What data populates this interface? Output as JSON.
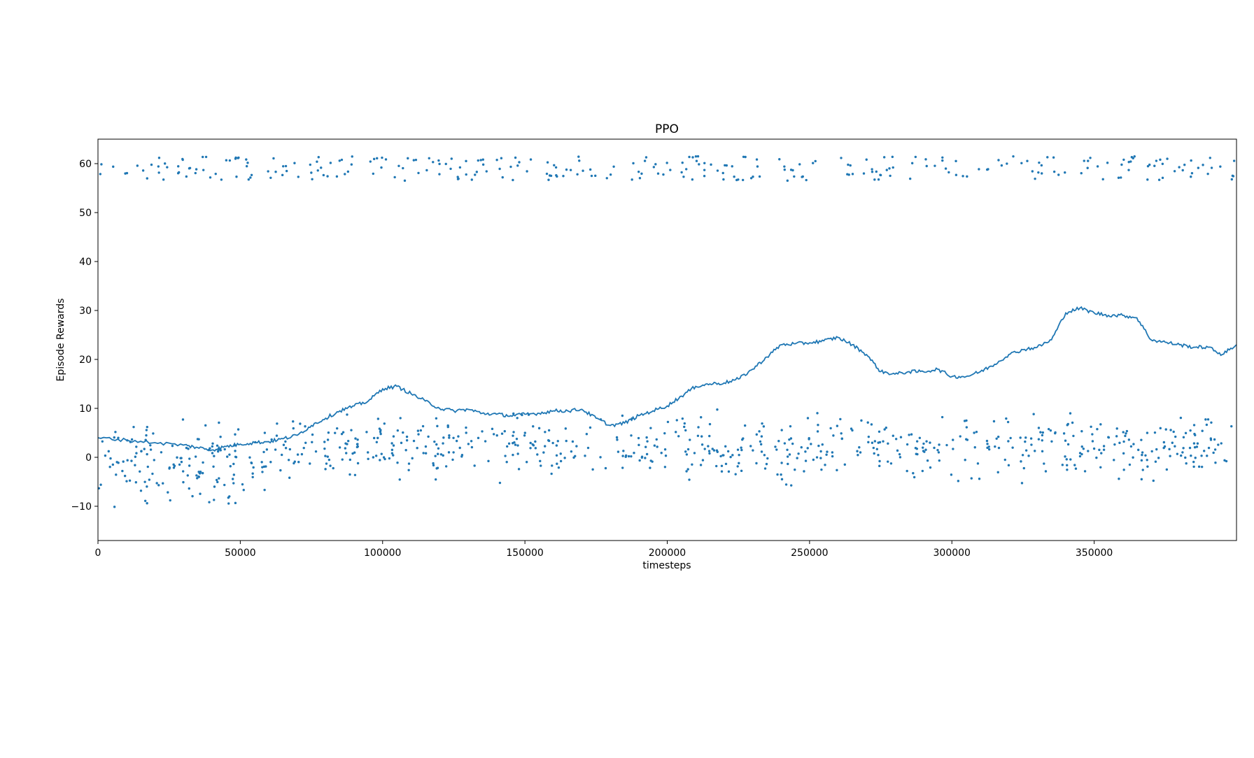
{
  "chart_data": {
    "type": "scatter",
    "title": "PPO",
    "xlabel": "timesteps",
    "ylabel": "Episode Rewards",
    "xlim": [
      0,
      400000
    ],
    "ylim": [
      -17,
      65
    ],
    "xticks": [
      0,
      50000,
      100000,
      150000,
      200000,
      250000,
      300000,
      350000
    ],
    "xtick_labels": [
      "0",
      "50000",
      "100000",
      "150000",
      "200000",
      "250000",
      "300000",
      "350000"
    ],
    "yticks": [
      -10,
      0,
      10,
      20,
      30,
      40,
      50,
      60
    ],
    "ytick_labels": [
      "−10",
      "0",
      "10",
      "20",
      "30",
      "40",
      "50",
      "60"
    ],
    "grid": false,
    "legend": "none",
    "color": "#1f77b4",
    "series": [
      {
        "kind": "scatter",
        "note_clusters": [
          {
            "x_range": [
              0,
              60000
            ],
            "y_range": [
              -13,
              10
            ],
            "count": 150
          },
          {
            "x_range": [
              60000,
              400000
            ],
            "y_range": [
              -7,
              11
            ],
            "count": 640
          },
          {
            "x_range": [
              0,
              400000
            ],
            "y_range": [
              56.5,
              61.5
            ],
            "count": 300
          }
        ]
      },
      {
        "kind": "line",
        "x": [
          0,
          10000,
          20000,
          30000,
          35000,
          40000,
          45000,
          50000,
          55000,
          60000,
          65000,
          70000,
          75000,
          80000,
          85000,
          90000,
          95000,
          100000,
          105000,
          110000,
          115000,
          120000,
          125000,
          130000,
          135000,
          140000,
          145000,
          150000,
          155000,
          160000,
          165000,
          170000,
          175000,
          180000,
          185000,
          190000,
          195000,
          200000,
          205000,
          210000,
          215000,
          220000,
          225000,
          230000,
          235000,
          240000,
          245000,
          250000,
          255000,
          260000,
          265000,
          270000,
          275000,
          280000,
          285000,
          290000,
          295000,
          300000,
          305000,
          310000,
          315000,
          320000,
          325000,
          330000,
          335000,
          340000,
          345000,
          350000,
          355000,
          360000,
          365000,
          370000,
          375000,
          380000,
          385000,
          390000,
          395000,
          400000
        ],
        "y": [
          4,
          3.5,
          3,
          2.5,
          2,
          1.5,
          2.2,
          2.7,
          3,
          3.2,
          3.8,
          4.5,
          6.5,
          8,
          9.5,
          10.5,
          11.5,
          14,
          14.5,
          13,
          11.5,
          10,
          9.5,
          9.8,
          9,
          8.8,
          8.5,
          8.8,
          9,
          9.5,
          9.5,
          9.8,
          8,
          6.5,
          7,
          8.5,
          9.5,
          10.5,
          12.5,
          14.5,
          15,
          15.2,
          16,
          18,
          20.5,
          23,
          23.2,
          23.4,
          23.8,
          24.5,
          23,
          21,
          17.5,
          17,
          17.5,
          17.5,
          18,
          16.5,
          16.5,
          17.5,
          19,
          21,
          22,
          22.5,
          24,
          29.5,
          30.5,
          29.5,
          29,
          29,
          28.5,
          24,
          23.5,
          23,
          22.5,
          22.5,
          21,
          23
        ]
      }
    ]
  }
}
